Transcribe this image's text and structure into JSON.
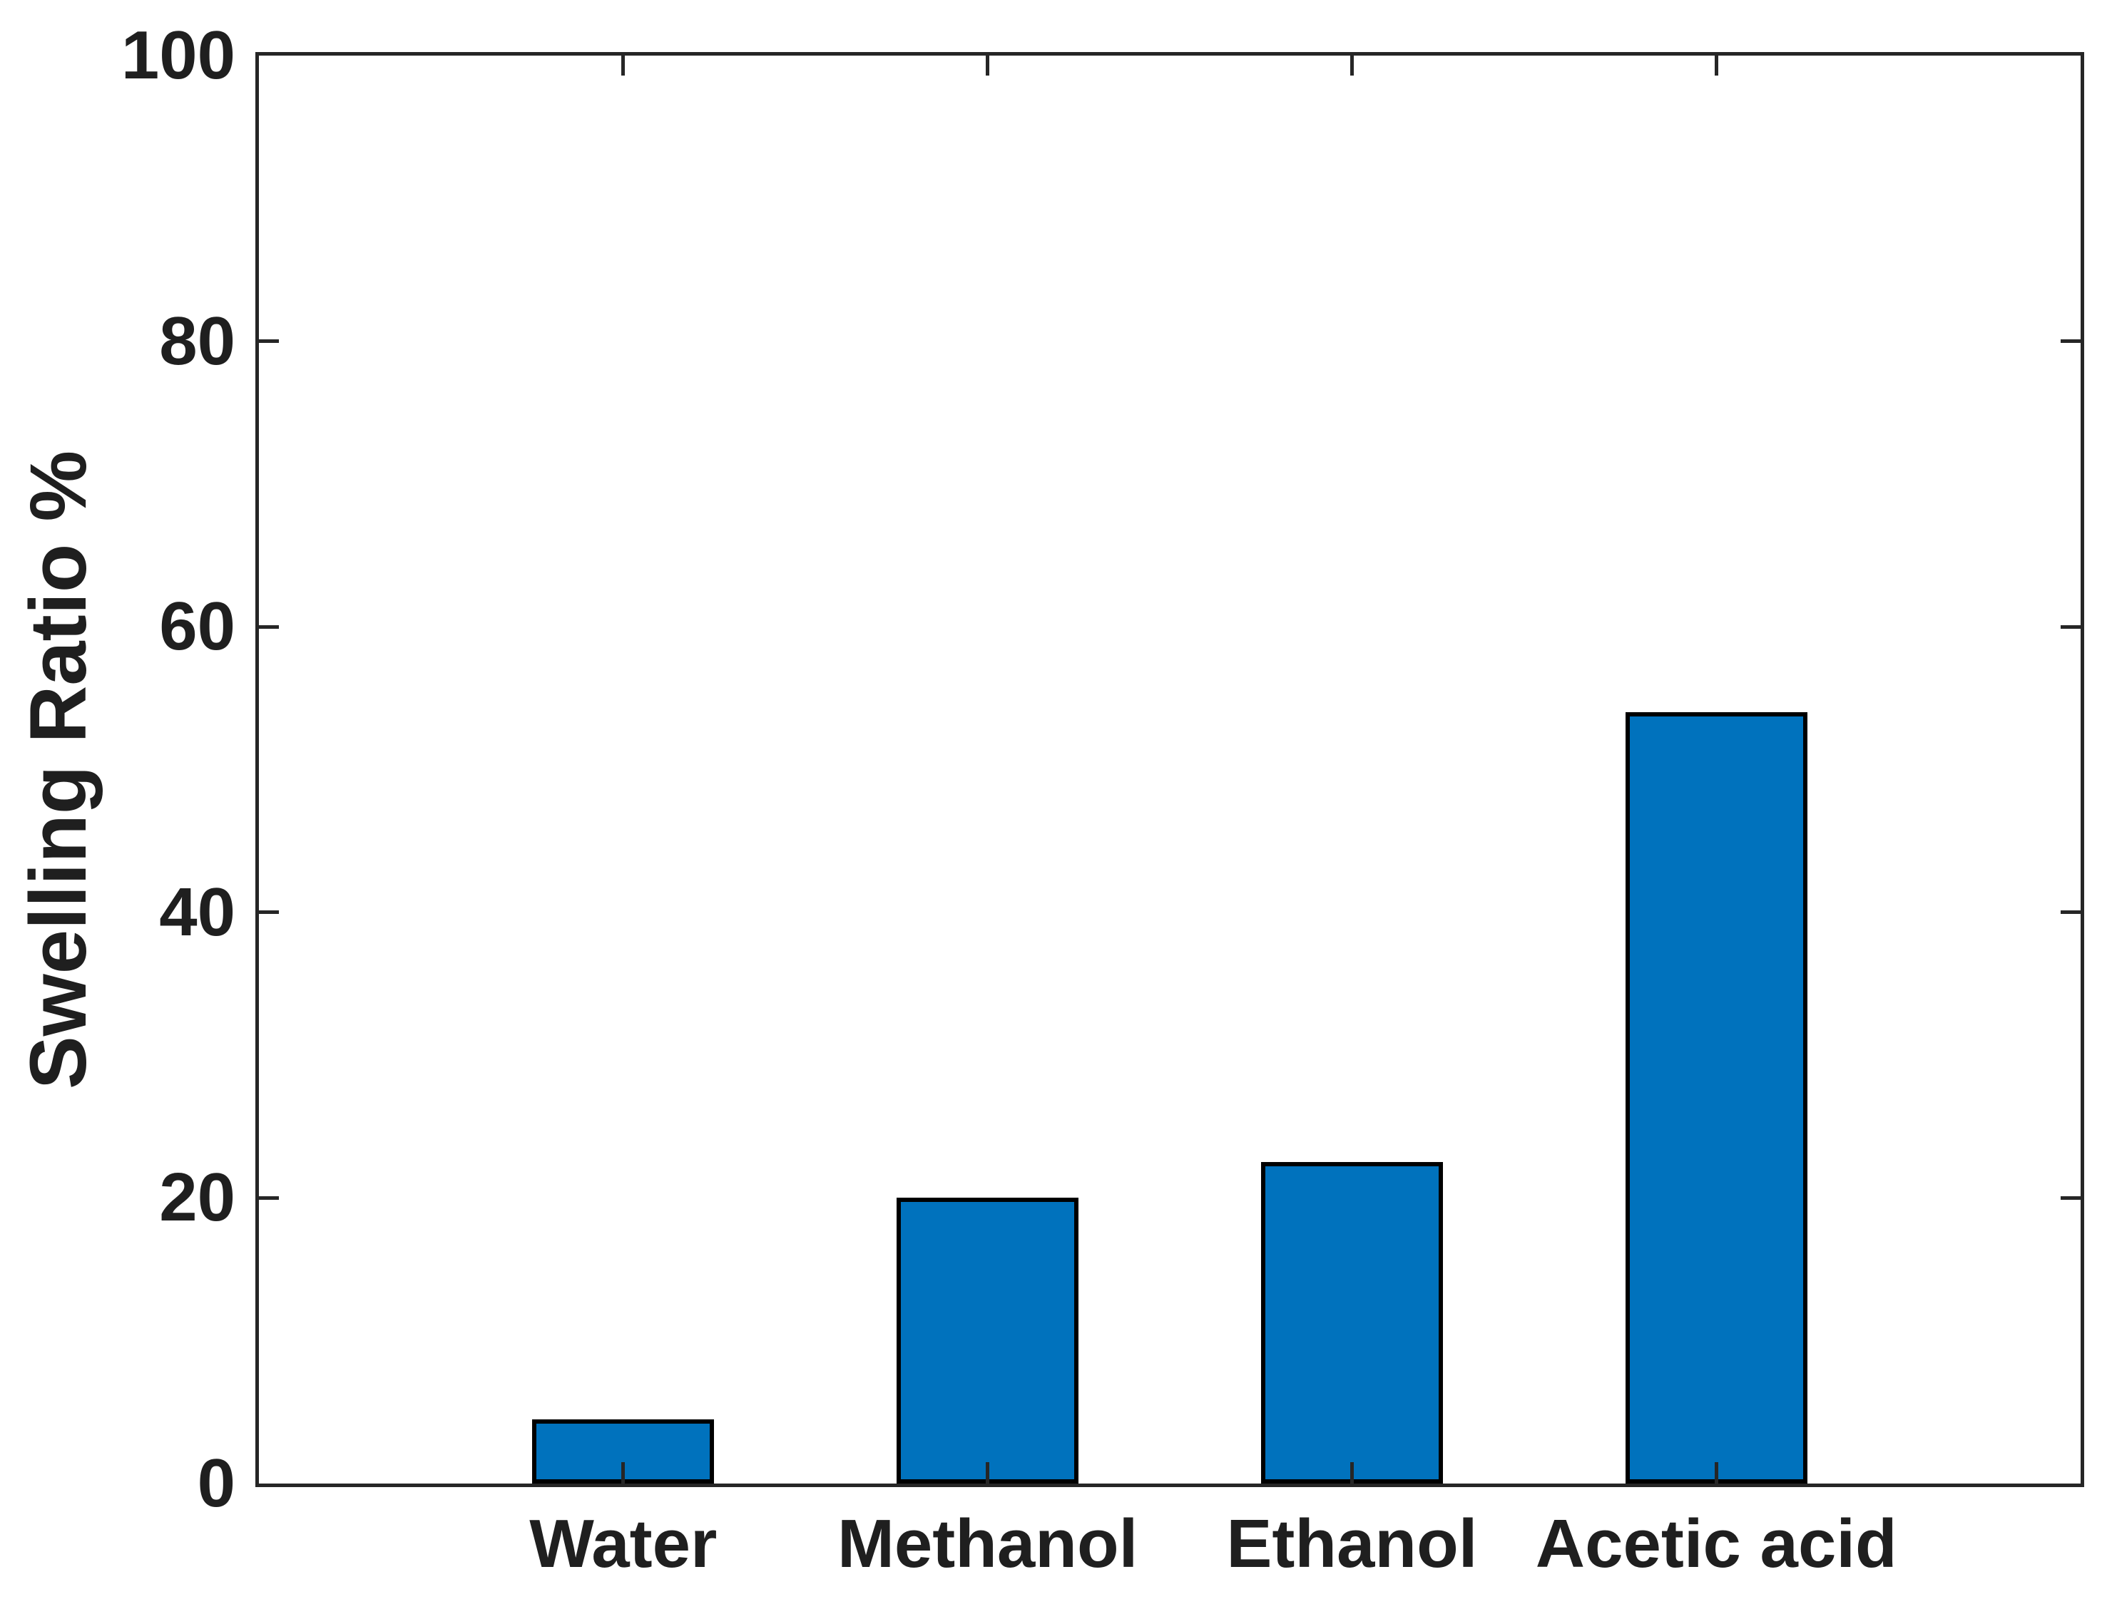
{
  "chart_data": {
    "type": "bar",
    "title": "",
    "categories": [
      "Water",
      "Methanol",
      "Ethanol",
      "Acetic acid"
    ],
    "values": [
      4.5,
      20,
      22.5,
      54
    ],
    "xlabel": "",
    "ylabel": "Swelling Ratio %",
    "ylim": [
      0,
      100
    ],
    "yticks": [
      0,
      20,
      40,
      60,
      80,
      100
    ],
    "grid": false,
    "legend": "none",
    "bar_relative_width": 0.5,
    "colors": {
      "bar_fill": "#0072BD",
      "bar_edge": "#000000",
      "axis": "#262626",
      "text": "#1f1f1f",
      "background": "#ffffff"
    }
  }
}
